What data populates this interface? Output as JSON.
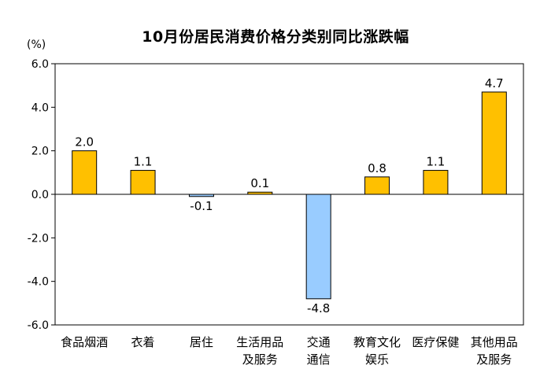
{
  "chart_data": {
    "type": "bar",
    "title": "10月份居民消费价格分类别同比涨跌幅",
    "unit": "(%)",
    "categories": [
      [
        "食品烟酒"
      ],
      [
        "衣着"
      ],
      [
        "居住"
      ],
      [
        "生活用品",
        "及服务"
      ],
      [
        "交通",
        "通信"
      ],
      [
        "教育文化",
        "娱乐"
      ],
      [
        "医疗保健"
      ],
      [
        "其他用品",
        "及服务"
      ]
    ],
    "values": [
      2.0,
      1.1,
      -0.1,
      0.1,
      -4.8,
      0.8,
      1.1,
      4.7
    ],
    "data_labels": [
      "2.0",
      "1.1",
      "-0.1",
      "0.1",
      "-4.8",
      "0.8",
      "1.1",
      "4.7"
    ],
    "yticks": [
      "6.0",
      "4.0",
      "2.0",
      "0.0",
      "-2.0",
      "-4.0",
      "-6.0"
    ],
    "ylim": [
      -6,
      6
    ],
    "colors": {
      "positive": "#FFC000",
      "negative": "#99CCFF",
      "border": "#000000"
    },
    "grid": false,
    "legend": "none"
  }
}
